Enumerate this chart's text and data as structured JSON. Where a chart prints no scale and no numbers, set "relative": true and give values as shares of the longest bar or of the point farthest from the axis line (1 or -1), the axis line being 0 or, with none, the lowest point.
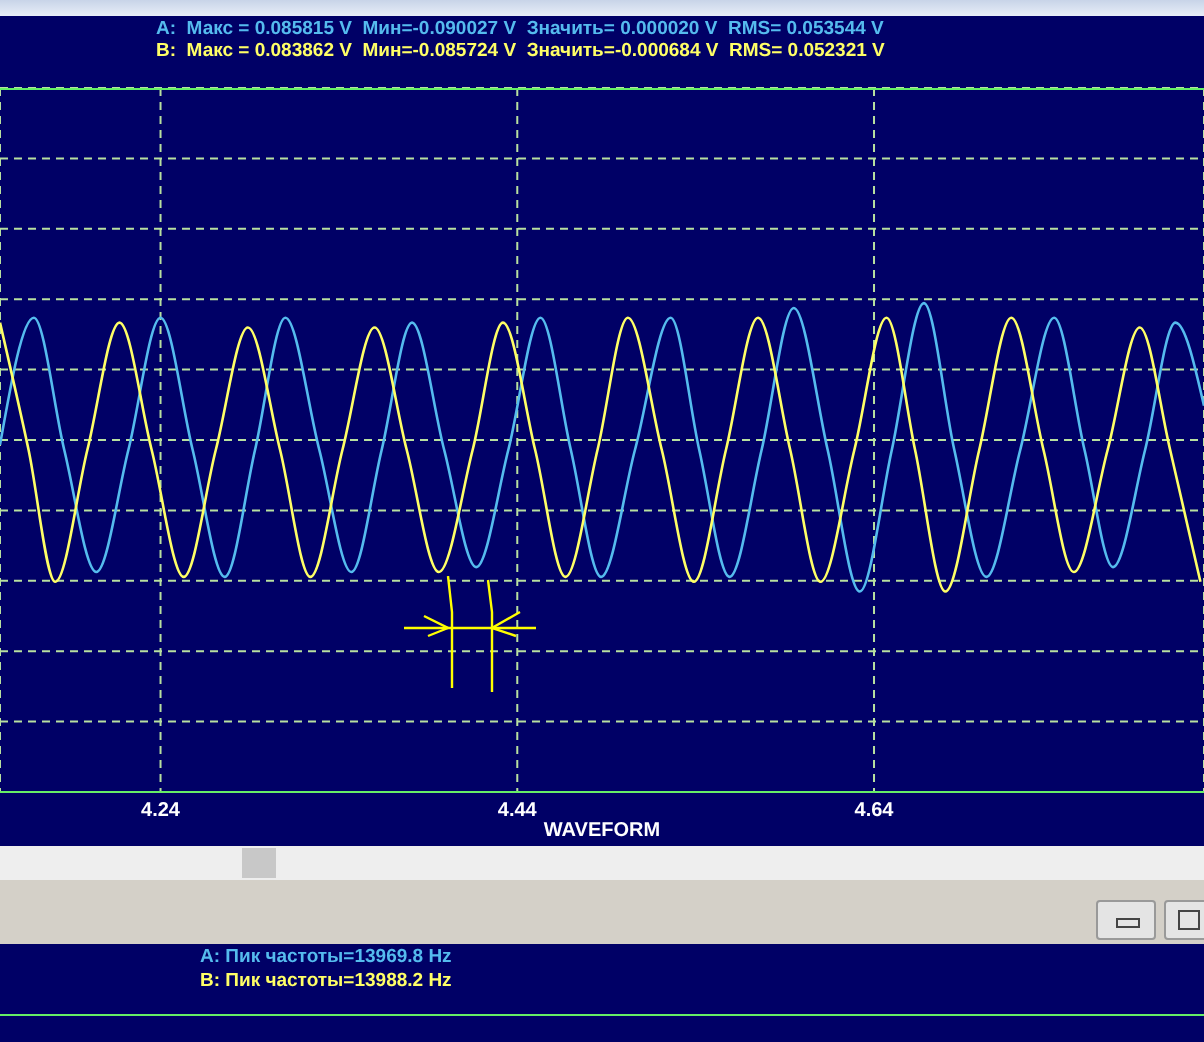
{
  "chart_data": {
    "type": "line",
    "relative": true,
    "xlabel": "WAVEFORM",
    "xlim": [
      4.15,
      4.825
    ],
    "xticks": [
      4.24,
      4.44,
      4.64
    ],
    "grid": true,
    "line_style": "solid",
    "marker": "none",
    "annotations": [
      "A:  Макс = 0.085815 V  Мин=-0.090027 V  Значить= 0.000020 V  RMS= 0.053544 V",
      "B:  Макс = 0.083862 V  Мин=-0.085724 V  Значить=-0.000684 V  RMS= 0.052321 V",
      "A: Пик частоты=13969.8 Hz",
      "B: Пик частоты=13988.2 Hz"
    ],
    "series": [
      {
        "color": "#55bbee",
        "x": [
          4.15,
          4.169,
          4.186,
          4.204,
          4.222,
          4.24,
          4.258,
          4.276,
          4.293,
          4.31,
          4.329,
          4.347,
          4.364,
          4.381,
          4.399,
          4.417,
          4.435,
          4.453,
          4.47,
          4.487,
          4.506,
          4.526,
          4.542,
          4.559,
          4.577,
          4.595,
          4.614,
          4.632,
          4.65,
          4.668,
          4.685,
          4.703,
          4.722,
          4.741,
          4.758,
          4.774,
          4.792,
          4.809,
          4.825
        ],
        "values": [
          0.71,
          0.97,
          0.7,
          0.45,
          0.7,
          0.97,
          0.7,
          0.44,
          0.7,
          0.97,
          0.7,
          0.45,
          0.7,
          0.96,
          0.7,
          0.46,
          0.7,
          0.97,
          0.7,
          0.44,
          0.7,
          0.97,
          0.7,
          0.44,
          0.7,
          0.99,
          0.7,
          0.41,
          0.7,
          1.0,
          0.7,
          0.44,
          0.7,
          0.97,
          0.7,
          0.46,
          0.7,
          0.96,
          0.79
        ]
      },
      {
        "color": "#ffff66",
        "x": [
          4.15,
          4.166,
          4.181,
          4.199,
          4.217,
          4.235,
          4.253,
          4.271,
          4.289,
          4.307,
          4.324,
          4.342,
          4.36,
          4.378,
          4.396,
          4.415,
          4.432,
          4.45,
          4.467,
          4.485,
          4.502,
          4.521,
          4.539,
          4.557,
          4.575,
          4.593,
          4.61,
          4.629,
          4.647,
          4.663,
          4.68,
          4.699,
          4.717,
          4.735,
          4.752,
          4.771,
          4.789,
          4.806,
          4.823
        ],
        "values": [
          0.96,
          0.7,
          0.43,
          0.7,
          0.96,
          0.7,
          0.44,
          0.7,
          0.95,
          0.7,
          0.44,
          0.7,
          0.95,
          0.7,
          0.45,
          0.7,
          0.96,
          0.7,
          0.44,
          0.7,
          0.97,
          0.7,
          0.43,
          0.7,
          0.97,
          0.7,
          0.43,
          0.7,
          0.97,
          0.7,
          0.41,
          0.7,
          0.97,
          0.7,
          0.45,
          0.7,
          0.95,
          0.7,
          0.43
        ]
      }
    ]
  }
}
